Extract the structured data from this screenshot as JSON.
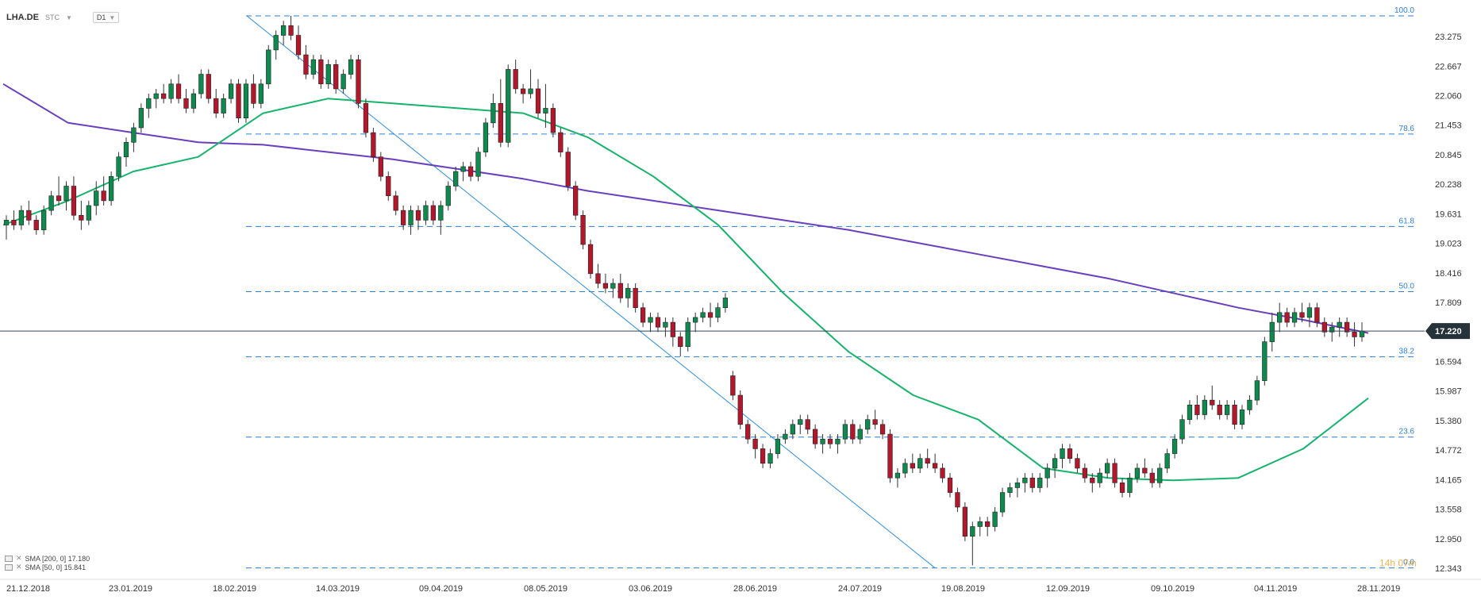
{
  "header": {
    "symbol": "LHA.DE",
    "market": "STC",
    "timeframe": "D1"
  },
  "legend": [
    {
      "label": "SMA [200, 0] 17.180",
      "color": "#6a3fbf"
    },
    {
      "label": "SMA [50, 0] 15.841",
      "color": "#16b46a"
    }
  ],
  "overlay_text": "14h 07m",
  "chart_data": {
    "type": "candlestick",
    "title": "",
    "ylim": [
      12.343,
      23.7
    ],
    "y_ticks": [
      "23.275",
      "22.667",
      "22.060",
      "21.453",
      "20.845",
      "20.238",
      "19.631",
      "19.023",
      "18.416",
      "17.809",
      "17.220",
      "16.594",
      "15.987",
      "15.380",
      "14.772",
      "14.165",
      "13.558",
      "12.950",
      "12.343"
    ],
    "x_ticks": [
      "21.12.2018",
      "23.01.2019",
      "18.02.2019",
      "14.03.2019",
      "09.04.2019",
      "08.05.2019",
      "03.06.2019",
      "28.06.2019",
      "24.07.2019",
      "19.08.2019",
      "12.09.2019",
      "09.10.2019",
      "04.11.2019",
      "28.11.2019"
    ],
    "current_price": 17.22,
    "fibonacci": [
      {
        "label": "100.0",
        "value": 23.7
      },
      {
        "label": "78.6",
        "value": 21.27
      },
      {
        "label": "61.8",
        "value": 19.37
      },
      {
        "label": "50.0",
        "value": 18.03
      },
      {
        "label": "38.2",
        "value": 16.69
      },
      {
        "label": "23.6",
        "value": 15.04
      },
      {
        "label": "0.0",
        "value": 12.35
      }
    ],
    "trendline": {
      "from": {
        "x": "18.02.2019",
        "y": 23.7
      },
      "to": {
        "x": "16.08.2019",
        "y": 12.35
      }
    },
    "candles": [
      [
        19.4,
        19.6,
        19.1,
        19.5
      ],
      [
        19.5,
        19.7,
        19.3,
        19.4
      ],
      [
        19.4,
        19.8,
        19.3,
        19.7
      ],
      [
        19.7,
        19.9,
        19.4,
        19.5
      ],
      [
        19.5,
        19.6,
        19.2,
        19.3
      ],
      [
        19.3,
        19.8,
        19.2,
        19.7
      ],
      [
        19.7,
        20.1,
        19.6,
        20.0
      ],
      [
        20.0,
        20.4,
        19.8,
        19.9
      ],
      [
        19.9,
        20.3,
        19.7,
        20.2
      ],
      [
        20.2,
        20.4,
        19.5,
        19.6
      ],
      [
        19.6,
        19.9,
        19.3,
        19.5
      ],
      [
        19.5,
        19.9,
        19.4,
        19.8
      ],
      [
        19.8,
        20.3,
        19.6,
        20.1
      ],
      [
        20.1,
        20.4,
        19.8,
        19.9
      ],
      [
        19.9,
        20.5,
        19.8,
        20.4
      ],
      [
        20.4,
        20.9,
        20.3,
        20.8
      ],
      [
        20.8,
        21.2,
        20.6,
        21.1
      ],
      [
        21.1,
        21.5,
        20.9,
        21.4
      ],
      [
        21.4,
        21.9,
        21.3,
        21.8
      ],
      [
        21.8,
        22.1,
        21.6,
        22.0
      ],
      [
        22.0,
        22.2,
        21.8,
        22.1
      ],
      [
        22.1,
        22.3,
        21.9,
        22.0
      ],
      [
        22.0,
        22.4,
        21.9,
        22.3
      ],
      [
        22.3,
        22.5,
        21.9,
        22.0
      ],
      [
        22.0,
        22.2,
        21.7,
        21.8
      ],
      [
        21.8,
        22.2,
        21.7,
        22.1
      ],
      [
        22.1,
        22.6,
        22.0,
        22.5
      ],
      [
        22.5,
        22.6,
        21.9,
        22.0
      ],
      [
        22.0,
        22.2,
        21.6,
        21.7
      ],
      [
        21.7,
        22.1,
        21.6,
        22.0
      ],
      [
        22.0,
        22.4,
        21.9,
        22.3
      ],
      [
        22.3,
        22.4,
        21.5,
        21.6
      ],
      [
        21.6,
        22.4,
        21.5,
        22.3
      ],
      [
        22.3,
        22.5,
        21.8,
        21.9
      ],
      [
        21.9,
        22.4,
        21.8,
        22.3
      ],
      [
        22.3,
        23.1,
        22.2,
        23.0
      ],
      [
        23.0,
        23.4,
        22.8,
        23.3
      ],
      [
        23.3,
        23.6,
        23.1,
        23.5
      ],
      [
        23.5,
        23.7,
        23.2,
        23.3
      ],
      [
        23.3,
        23.5,
        22.8,
        22.9
      ],
      [
        22.9,
        23.1,
        22.4,
        22.5
      ],
      [
        22.5,
        22.9,
        22.4,
        22.8
      ],
      [
        22.8,
        22.9,
        22.2,
        22.3
      ],
      [
        22.3,
        22.8,
        22.2,
        22.7
      ],
      [
        22.7,
        22.8,
        22.1,
        22.2
      ],
      [
        22.2,
        22.6,
        22.1,
        22.5
      ],
      [
        22.5,
        22.9,
        22.4,
        22.8
      ],
      [
        22.8,
        22.9,
        21.8,
        21.9
      ],
      [
        21.9,
        22.0,
        21.2,
        21.3
      ],
      [
        21.3,
        21.4,
        20.7,
        20.8
      ],
      [
        20.8,
        20.9,
        20.3,
        20.4
      ],
      [
        20.4,
        20.5,
        19.9,
        20.0
      ],
      [
        20.0,
        20.1,
        19.6,
        19.7
      ],
      [
        19.7,
        19.8,
        19.3,
        19.4
      ],
      [
        19.4,
        19.8,
        19.2,
        19.7
      ],
      [
        19.7,
        19.8,
        19.3,
        19.5
      ],
      [
        19.5,
        19.9,
        19.4,
        19.8
      ],
      [
        19.8,
        19.9,
        19.4,
        19.5
      ],
      [
        19.5,
        19.9,
        19.2,
        19.8
      ],
      [
        19.8,
        20.3,
        19.7,
        20.2
      ],
      [
        20.2,
        20.6,
        20.1,
        20.5
      ],
      [
        20.5,
        20.7,
        20.3,
        20.6
      ],
      [
        20.6,
        20.7,
        20.3,
        20.4
      ],
      [
        20.4,
        21.0,
        20.3,
        20.9
      ],
      [
        20.9,
        21.6,
        20.8,
        21.5
      ],
      [
        21.5,
        22.1,
        21.4,
        21.9
      ],
      [
        21.9,
        22.4,
        21.0,
        21.1
      ],
      [
        21.1,
        22.7,
        21.0,
        22.6
      ],
      [
        22.6,
        22.8,
        22.1,
        22.2
      ],
      [
        22.2,
        22.3,
        21.9,
        22.1
      ],
      [
        22.1,
        22.6,
        22.0,
        22.2
      ],
      [
        22.2,
        22.4,
        21.6,
        21.7
      ],
      [
        21.7,
        22.3,
        21.4,
        21.8
      ],
      [
        21.8,
        21.9,
        21.2,
        21.3
      ],
      [
        21.3,
        21.4,
        20.8,
        20.9
      ],
      [
        20.9,
        21.0,
        20.1,
        20.2
      ],
      [
        20.2,
        20.3,
        19.5,
        19.6
      ],
      [
        19.6,
        19.7,
        18.9,
        19.0
      ],
      [
        19.0,
        19.1,
        18.3,
        18.4
      ],
      [
        18.4,
        18.6,
        18.1,
        18.2
      ],
      [
        18.2,
        18.4,
        18.0,
        18.1
      ],
      [
        18.1,
        18.3,
        17.9,
        18.2
      ],
      [
        18.2,
        18.4,
        17.8,
        17.9
      ],
      [
        17.9,
        18.2,
        17.7,
        18.1
      ],
      [
        18.1,
        18.2,
        17.6,
        17.7
      ],
      [
        17.7,
        17.8,
        17.3,
        17.4
      ],
      [
        17.4,
        17.6,
        17.2,
        17.5
      ],
      [
        17.5,
        17.6,
        17.2,
        17.3
      ],
      [
        17.3,
        17.5,
        17.1,
        17.4
      ],
      [
        17.4,
        17.5,
        16.9,
        17.1
      ],
      [
        17.1,
        17.2,
        16.7,
        16.9
      ],
      [
        16.9,
        17.5,
        16.8,
        17.4
      ],
      [
        17.4,
        17.6,
        17.2,
        17.5
      ],
      [
        17.5,
        17.7,
        17.4,
        17.6
      ],
      [
        17.6,
        17.8,
        17.3,
        17.5
      ],
      [
        17.5,
        17.8,
        17.4,
        17.7
      ],
      [
        17.7,
        18.0,
        17.6,
        17.9
      ],
      [
        16.3,
        16.4,
        15.8,
        15.9
      ],
      [
        15.9,
        16.0,
        15.2,
        15.3
      ],
      [
        15.3,
        15.4,
        14.9,
        15.0
      ],
      [
        15.0,
        15.1,
        14.6,
        14.8
      ],
      [
        14.8,
        14.9,
        14.4,
        14.5
      ],
      [
        14.5,
        14.8,
        14.4,
        14.7
      ],
      [
        14.7,
        15.1,
        14.6,
        15.0
      ],
      [
        15.0,
        15.2,
        14.9,
        15.1
      ],
      [
        15.1,
        15.4,
        15.0,
        15.3
      ],
      [
        15.3,
        15.5,
        15.1,
        15.4
      ],
      [
        15.4,
        15.5,
        15.1,
        15.2
      ],
      [
        15.2,
        15.3,
        14.8,
        14.9
      ],
      [
        14.9,
        15.1,
        14.7,
        15.0
      ],
      [
        15.0,
        15.1,
        14.8,
        14.9
      ],
      [
        14.9,
        15.1,
        14.7,
        15.0
      ],
      [
        15.0,
        15.4,
        14.9,
        15.3
      ],
      [
        15.3,
        15.4,
        14.9,
        15.0
      ],
      [
        15.0,
        15.3,
        14.9,
        15.2
      ],
      [
        15.2,
        15.5,
        15.1,
        15.4
      ],
      [
        15.4,
        15.6,
        15.2,
        15.3
      ],
      [
        15.3,
        15.4,
        15.0,
        15.1
      ],
      [
        15.1,
        15.2,
        14.1,
        14.2
      ],
      [
        14.2,
        14.4,
        14.0,
        14.3
      ],
      [
        14.3,
        14.6,
        14.2,
        14.5
      ],
      [
        14.5,
        14.7,
        14.3,
        14.4
      ],
      [
        14.4,
        14.7,
        14.3,
        14.6
      ],
      [
        14.6,
        14.8,
        14.4,
        14.5
      ],
      [
        14.5,
        14.7,
        14.3,
        14.4
      ],
      [
        14.4,
        14.5,
        14.1,
        14.2
      ],
      [
        14.2,
        14.3,
        13.8,
        13.9
      ],
      [
        13.9,
        14.0,
        13.5,
        13.6
      ],
      [
        13.6,
        13.7,
        12.9,
        13.0
      ],
      [
        13.0,
        13.3,
        12.4,
        13.2
      ],
      [
        13.2,
        13.4,
        13.0,
        13.3
      ],
      [
        13.3,
        13.4,
        13.0,
        13.2
      ],
      [
        13.2,
        13.6,
        13.1,
        13.5
      ],
      [
        13.5,
        14.0,
        13.4,
        13.9
      ],
      [
        13.9,
        14.1,
        13.8,
        14.0
      ],
      [
        14.0,
        14.2,
        13.8,
        14.1
      ],
      [
        14.1,
        14.3,
        13.9,
        14.2
      ],
      [
        14.2,
        14.3,
        13.9,
        14.0
      ],
      [
        14.0,
        14.3,
        13.9,
        14.2
      ],
      [
        14.2,
        14.5,
        14.0,
        14.4
      ],
      [
        14.4,
        14.7,
        14.2,
        14.6
      ],
      [
        14.6,
        14.9,
        14.4,
        14.8
      ],
      [
        14.8,
        14.9,
        14.5,
        14.6
      ],
      [
        14.6,
        14.7,
        14.3,
        14.4
      ],
      [
        14.4,
        14.5,
        14.1,
        14.2
      ],
      [
        14.2,
        14.3,
        13.9,
        14.1
      ],
      [
        14.1,
        14.4,
        14.0,
        14.3
      ],
      [
        14.3,
        14.6,
        14.2,
        14.5
      ],
      [
        14.5,
        14.6,
        14.0,
        14.1
      ],
      [
        14.1,
        14.2,
        13.8,
        13.9
      ],
      [
        13.9,
        14.3,
        13.8,
        14.2
      ],
      [
        14.2,
        14.5,
        14.1,
        14.4
      ],
      [
        14.4,
        14.6,
        14.2,
        14.3
      ],
      [
        14.3,
        14.4,
        14.0,
        14.1
      ],
      [
        14.1,
        14.5,
        14.0,
        14.4
      ],
      [
        14.4,
        14.8,
        14.3,
        14.7
      ],
      [
        14.7,
        15.1,
        14.6,
        15.0
      ],
      [
        15.0,
        15.5,
        14.9,
        15.4
      ],
      [
        15.4,
        15.8,
        15.3,
        15.7
      ],
      [
        15.7,
        15.9,
        15.4,
        15.5
      ],
      [
        15.5,
        15.9,
        15.4,
        15.8
      ],
      [
        15.8,
        16.1,
        15.6,
        15.7
      ],
      [
        15.7,
        15.8,
        15.4,
        15.5
      ],
      [
        15.5,
        15.8,
        15.4,
        15.7
      ],
      [
        15.7,
        15.8,
        15.2,
        15.3
      ],
      [
        15.3,
        15.7,
        15.2,
        15.6
      ],
      [
        15.6,
        15.9,
        15.5,
        15.8
      ],
      [
        15.8,
        16.3,
        15.7,
        16.2
      ],
      [
        16.2,
        17.1,
        16.1,
        17.0
      ],
      [
        17.0,
        17.6,
        16.8,
        17.4
      ],
      [
        17.4,
        17.8,
        17.2,
        17.6
      ],
      [
        17.6,
        17.7,
        17.3,
        17.4
      ],
      [
        17.4,
        17.7,
        17.3,
        17.6
      ],
      [
        17.6,
        17.8,
        17.4,
        17.5
      ],
      [
        17.5,
        17.8,
        17.3,
        17.7
      ],
      [
        17.7,
        17.8,
        17.3,
        17.4
      ],
      [
        17.4,
        17.5,
        17.1,
        17.2
      ],
      [
        17.2,
        17.4,
        17.0,
        17.3
      ],
      [
        17.3,
        17.5,
        17.1,
        17.4
      ],
      [
        17.4,
        17.5,
        17.1,
        17.2
      ],
      [
        17.2,
        17.4,
        16.9,
        17.1
      ],
      [
        17.1,
        17.4,
        17.0,
        17.22
      ]
    ],
    "series": [
      {
        "name": "SMA [200, 0] 17.180",
        "color": "#6a3fbf",
        "values": [
          22.3,
          21.5,
          21.3,
          21.1,
          21.05,
          20.9,
          20.75,
          20.55,
          20.35,
          20.1,
          19.9,
          19.7,
          19.5,
          19.3,
          19.05,
          18.8,
          18.55,
          18.3,
          18.0,
          17.7,
          17.45,
          17.18
        ]
      },
      {
        "name": "SMA [50, 0] 15.841",
        "color": "#16b46a",
        "values": [
          19.4,
          19.9,
          20.5,
          20.8,
          21.7,
          22.0,
          21.9,
          21.8,
          21.7,
          21.2,
          20.4,
          19.4,
          18.0,
          16.8,
          15.9,
          15.4,
          14.4,
          14.2,
          14.15,
          14.2,
          14.8,
          15.84
        ]
      }
    ]
  }
}
